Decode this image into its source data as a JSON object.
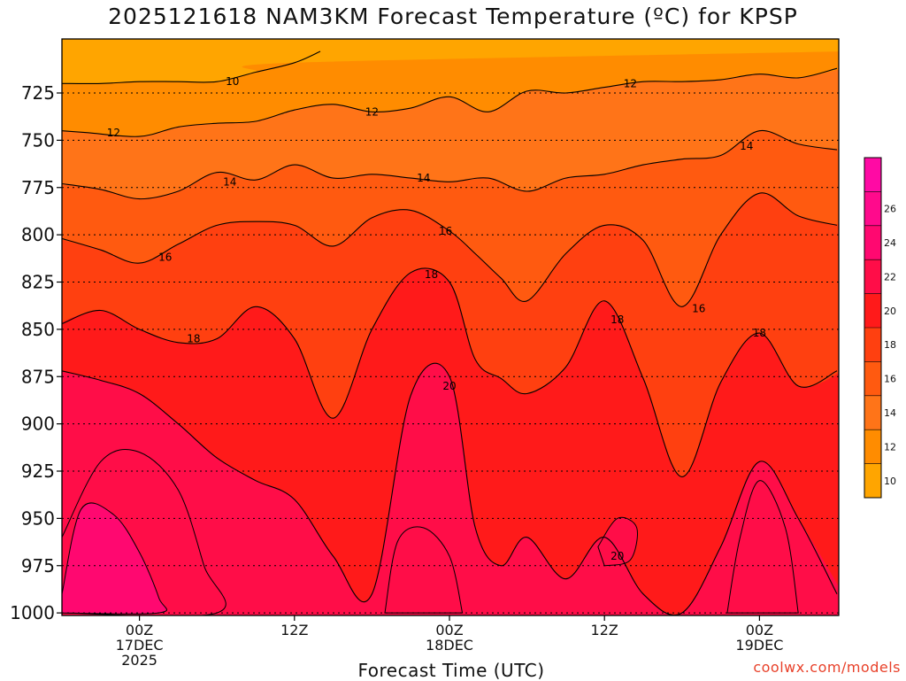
{
  "title": "2025121618 NAM3KM Forecast Temperature (ºC) for KPSP",
  "x_axis_title": "Forecast Time (UTC)",
  "credit": "coolwx.com/models",
  "chart_data": {
    "type": "heatmap",
    "title": "2025121618 NAM3KM Forecast Temperature (ºC) for KPSP",
    "xlabel": "Forecast Time (UTC)",
    "ylabel": "",
    "x_ticks": [
      {
        "hour": 24,
        "lines": [
          "00Z",
          "17DEC",
          "2025"
        ]
      },
      {
        "hour": 36,
        "lines": [
          "12Z"
        ]
      },
      {
        "hour": 48,
        "lines": [
          "00Z",
          "18DEC"
        ]
      },
      {
        "hour": 60,
        "lines": [
          "12Z"
        ]
      },
      {
        "hour": 72,
        "lines": [
          "00Z",
          "19DEC"
        ]
      }
    ],
    "xlim": [
      18,
      78
    ],
    "y_ticks": [
      725,
      750,
      775,
      800,
      825,
      850,
      875,
      900,
      925,
      950,
      975,
      1000
    ],
    "ylim": [
      703,
      1008
    ],
    "y_reversed": true,
    "ground_level_hPa": 1000,
    "colorbar": {
      "labels": [
        10,
        12,
        14,
        16,
        18,
        20,
        22,
        24,
        26
      ],
      "colors": [
        "#ffa500",
        "#ff8c00",
        "#ff7418",
        "#ff5a10",
        "#ff4010",
        "#ff1a1a",
        "#ff0d48",
        "#ff0870",
        "#ff0a8c",
        "#ff0aa4"
      ]
    },
    "contour_levels": [
      10,
      12,
      14,
      16,
      18,
      20
    ],
    "contours": [
      {
        "level": 10,
        "x": [
          18,
          21,
          24,
          27,
          30,
          33,
          36,
          38
        ],
        "p": [
          720,
          720,
          719,
          719,
          719,
          714,
          709,
          703
        ]
      },
      {
        "level": 12,
        "x": [
          18,
          20,
          24,
          27,
          30,
          33,
          36,
          39,
          42,
          45,
          48,
          51,
          54,
          57,
          60,
          63,
          66,
          69,
          72,
          75,
          78
        ],
        "p": [
          745,
          746,
          748,
          743,
          741,
          740,
          734,
          731,
          735,
          733,
          727,
          735,
          724,
          725,
          722,
          719,
          719,
          718,
          715,
          717,
          712
        ]
      },
      {
        "level": 14,
        "x": [
          18,
          21,
          24,
          27,
          30,
          33,
          36,
          39,
          42,
          45,
          48,
          51,
          54,
          57,
          60,
          63,
          66,
          69,
          72,
          75,
          78
        ],
        "p": [
          773,
          776,
          781,
          777,
          767,
          771,
          763,
          770,
          768,
          770,
          772,
          770,
          777,
          770,
          768,
          763,
          760,
          758,
          745,
          752,
          755
        ]
      },
      {
        "level": 16,
        "x": [
          18,
          21,
          24,
          27,
          30,
          33,
          36,
          39,
          42,
          45,
          48,
          50,
          52,
          54,
          57,
          60,
          63,
          66,
          69,
          72,
          75,
          78
        ],
        "p": [
          802,
          808,
          815,
          805,
          795,
          793,
          795,
          806,
          791,
          787,
          798,
          810,
          823,
          835,
          810,
          795,
          803,
          838,
          800,
          778,
          790,
          795
        ]
      },
      {
        "level": 18,
        "x": [
          18,
          21,
          24,
          27,
          30,
          33,
          36,
          39,
          42,
          45,
          48,
          50,
          52,
          54,
          57,
          60,
          63,
          66,
          69,
          72,
          75,
          78
        ],
        "p": [
          847,
          840,
          850,
          857,
          855,
          838,
          855,
          897,
          850,
          820,
          825,
          866,
          876,
          884,
          870,
          835,
          876,
          928,
          878,
          852,
          880,
          872
        ]
      },
      {
        "level": 20,
        "x": [
          18,
          21,
          24,
          27,
          30,
          33,
          36,
          39,
          42,
          45,
          48,
          50,
          52,
          54,
          57,
          60,
          63,
          66,
          69,
          72,
          75,
          78
        ],
        "p": [
          872,
          877,
          884,
          900,
          918,
          930,
          940,
          970,
          990,
          885,
          875,
          955,
          975,
          960,
          982,
          960,
          990,
          1000,
          965,
          920,
          950,
          990
        ]
      }
    ],
    "contour_labels": [
      {
        "text": "10",
        "x": 31.2,
        "p": 719
      },
      {
        "text": "12",
        "x": 22.0,
        "p": 746
      },
      {
        "text": "12",
        "x": 42.0,
        "p": 735
      },
      {
        "text": "12",
        "x": 62.0,
        "p": 720
      },
      {
        "text": "14",
        "x": 31.0,
        "p": 772
      },
      {
        "text": "14",
        "x": 46.0,
        "p": 770
      },
      {
        "text": "14",
        "x": 71.0,
        "p": 753
      },
      {
        "text": "16",
        "x": 26.0,
        "p": 812
      },
      {
        "text": "16",
        "x": 47.7,
        "p": 798
      },
      {
        "text": "16",
        "x": 67.3,
        "p": 839
      },
      {
        "text": "18",
        "x": 28.2,
        "p": 855
      },
      {
        "text": "18",
        "x": 46.6,
        "p": 821
      },
      {
        "text": "18",
        "x": 61.0,
        "p": 845
      },
      {
        "text": "18",
        "x": 72.0,
        "p": 852
      },
      {
        "text": "20",
        "x": 48.0,
        "p": 880
      },
      {
        "text": "20",
        "x": 61.0,
        "p": 970
      }
    ]
  }
}
